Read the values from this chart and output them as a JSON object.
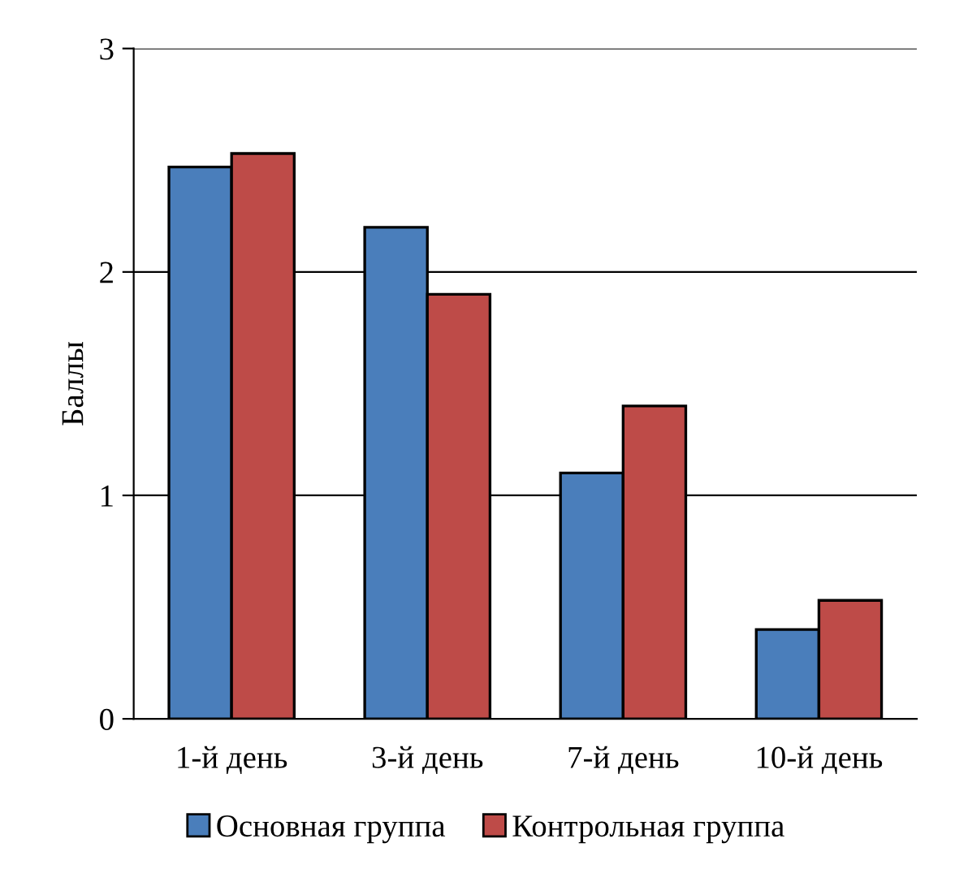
{
  "chart_data": {
    "type": "bar",
    "ylabel": "Баллы",
    "categories": [
      "1-й день",
      "3-й день",
      "7-й день",
      "10-й день"
    ],
    "series": [
      {
        "name": "Основная группа",
        "color": "#4a7ebb",
        "values": [
          2.47,
          2.2,
          1.1,
          0.4
        ]
      },
      {
        "name": "Контрольная группа",
        "color": "#be4b48",
        "values": [
          2.53,
          1.9,
          1.4,
          0.53
        ]
      }
    ],
    "ylim": [
      0,
      3
    ],
    "yticks": [
      0,
      1,
      2,
      3
    ],
    "grid": "y",
    "legend": "bottom"
  }
}
